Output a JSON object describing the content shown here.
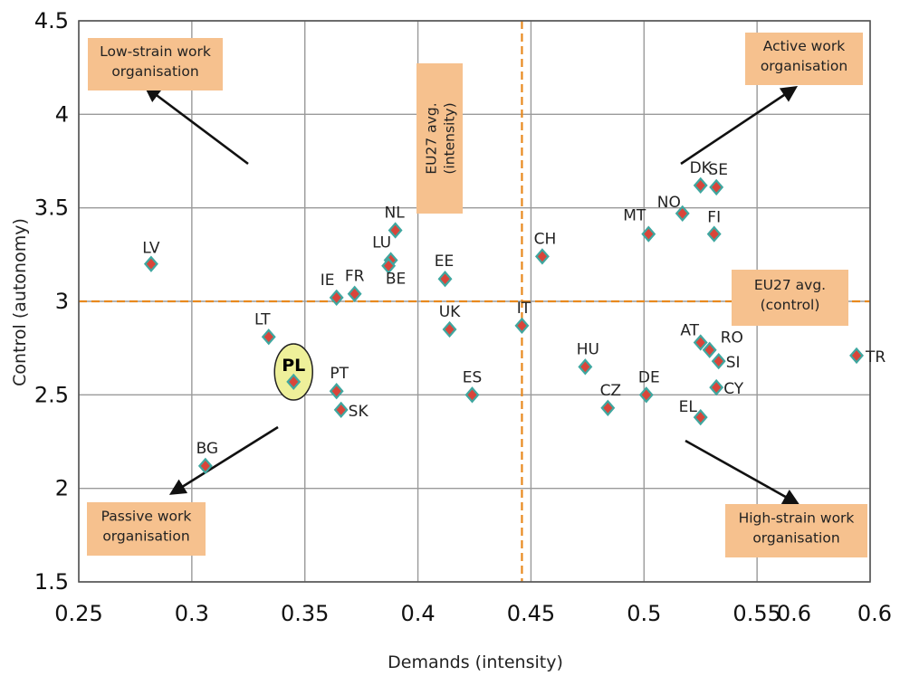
{
  "chart_data": {
    "type": "scatter",
    "xlabel": "Demands (intensity)",
    "ylabel": "Control (autonomy)",
    "xlim": [
      0.25,
      0.6
    ],
    "ylim": [
      1.5,
      4.5
    ],
    "x_ticks": [
      "0.25",
      "0.3",
      "0.35",
      "0.4",
      "0.45",
      "0.5",
      "0.55",
      "0.6",
      "0.6"
    ],
    "y_ticks": [
      "4.5",
      "4",
      "3.5",
      "3",
      "2.5",
      "2",
      "1.5"
    ],
    "grid": true,
    "reference_lines": {
      "eu27_avg_intensity_x": 0.446,
      "eu27_avg_control_y": 3.0,
      "color": "#E8891E"
    },
    "marker_colors": {
      "fill": "#D9453A",
      "outline": "#3FA7A0"
    },
    "points": [
      {
        "label": "LV",
        "x": 0.282,
        "y": 3.2
      },
      {
        "label": "NL",
        "x": 0.39,
        "y": 3.38
      },
      {
        "label": "LU",
        "x": 0.388,
        "y": 3.22
      },
      {
        "label": "BE",
        "x": 0.387,
        "y": 3.19
      },
      {
        "label": "FR",
        "x": 0.372,
        "y": 3.04
      },
      {
        "label": "IE",
        "x": 0.364,
        "y": 3.02
      },
      {
        "label": "EE",
        "x": 0.412,
        "y": 3.12
      },
      {
        "label": "LT",
        "x": 0.334,
        "y": 2.81
      },
      {
        "label": "UK",
        "x": 0.414,
        "y": 2.85
      },
      {
        "label": "PT",
        "x": 0.364,
        "y": 2.52
      },
      {
        "label": "SK",
        "x": 0.366,
        "y": 2.42
      },
      {
        "label": "ES",
        "x": 0.424,
        "y": 2.5
      },
      {
        "label": "BG",
        "x": 0.306,
        "y": 2.12
      },
      {
        "label": "PL",
        "x": 0.345,
        "y": 2.57
      },
      {
        "label": "IT",
        "x": 0.446,
        "y": 2.87
      },
      {
        "label": "CH",
        "x": 0.455,
        "y": 3.24
      },
      {
        "label": "HU",
        "x": 0.474,
        "y": 2.65
      },
      {
        "label": "CZ",
        "x": 0.484,
        "y": 2.43
      },
      {
        "label": "DE",
        "x": 0.501,
        "y": 2.5
      },
      {
        "label": "EL",
        "x": 0.525,
        "y": 2.38
      },
      {
        "label": "AT",
        "x": 0.525,
        "y": 2.78
      },
      {
        "label": "RO",
        "x": 0.529,
        "y": 2.74
      },
      {
        "label": "SI",
        "x": 0.533,
        "y": 2.68
      },
      {
        "label": "CY",
        "x": 0.532,
        "y": 2.54
      },
      {
        "label": "TR",
        "x": 0.594,
        "y": 2.71
      },
      {
        "label": "MT",
        "x": 0.502,
        "y": 3.36
      },
      {
        "label": "NO",
        "x": 0.517,
        "y": 3.47
      },
      {
        "label": "DK",
        "x": 0.525,
        "y": 3.62
      },
      {
        "label": "SE",
        "x": 0.532,
        "y": 3.61
      },
      {
        "label": "FI",
        "x": 0.531,
        "y": 3.36
      }
    ],
    "annotations": [
      {
        "id": "low-strain",
        "lines": [
          "Low-strain work",
          "organisation"
        ]
      },
      {
        "id": "active",
        "lines": [
          "Active work",
          "organisation"
        ]
      },
      {
        "id": "passive",
        "lines": [
          "Passive work",
          "organisation"
        ]
      },
      {
        "id": "high-strain",
        "lines": [
          "High-strain work",
          "organisation"
        ]
      },
      {
        "id": "eu27-control",
        "lines": [
          "EU27 avg.",
          "(control)"
        ]
      },
      {
        "id": "eu27-intensity",
        "lines": [
          "EU27 avg.",
          "(intensity)"
        ]
      }
    ],
    "annotation_box_color": "#F6C18E",
    "highlight": {
      "label": "PL",
      "fill": "#EEF09A",
      "stroke": "#222222"
    }
  }
}
